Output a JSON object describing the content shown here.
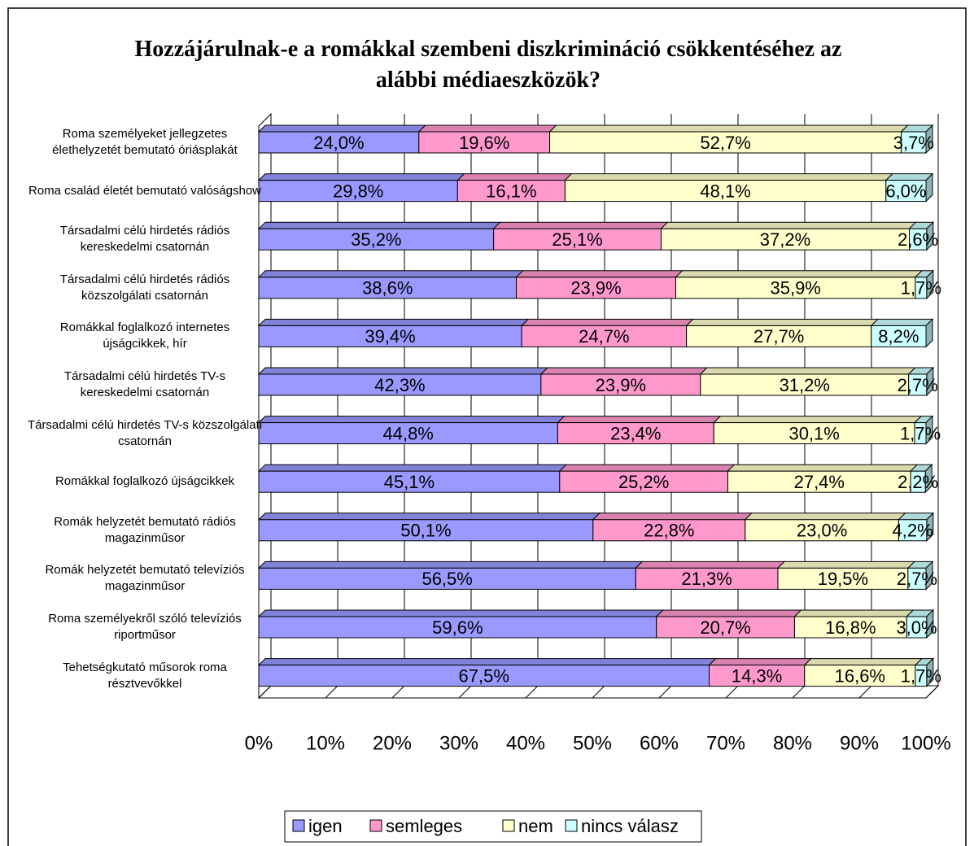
{
  "chart_data": {
    "type": "bar",
    "orientation": "horizontal",
    "stacked": true,
    "title": "Hozzájárulnak-e a romákkal szembeni diszkrimináció csökkentéséhez az alábbi médiaeszközök?",
    "categories": [
      "Roma személyeket jellegzetes élethelyzetét bemutató óriásplakát",
      "Roma család életét bemutató valóságshow",
      "Társadalmi célú hirdetés rádiós kereskedelmi csatornán",
      "Társadalmi célú hirdetés rádiós közszolgálati csatornán",
      "Romákkal foglalkozó internetes újságcikkek, hír",
      "Társadalmi célú hirdetés TV-s kereskedelmi csatornán",
      "Társadalmi célú hirdetés TV-s közszolgálati csatornán",
      "Romákkal foglalkozó újságcikkek",
      "Romák helyzetét bemutató rádiós magazinműsor",
      "Romák helyzetét bemutató televíziós magazinműsor",
      "Roma személyekről szóló televíziós riportműsor",
      "Tehetségkutató műsorok roma résztvevőkkel"
    ],
    "series": [
      {
        "name": "igen",
        "color": "#9999ff",
        "values": [
          24.0,
          29.8,
          35.2,
          38.6,
          39.4,
          42.3,
          44.8,
          45.1,
          50.1,
          56.5,
          59.6,
          67.5
        ],
        "value_labels": [
          "24,0%",
          "29,8%",
          "35,2%",
          "38,6%",
          "39,4%",
          "42,3%",
          "44,8%",
          "45,1%",
          "50,1%",
          "56,5%",
          "59,6%",
          "67,5%"
        ]
      },
      {
        "name": "semleges",
        "color": "#ff99cc",
        "values": [
          19.6,
          16.1,
          25.1,
          23.9,
          24.7,
          23.9,
          23.4,
          25.2,
          22.8,
          21.3,
          20.7,
          14.3
        ],
        "value_labels": [
          "19,6%",
          "16,1%",
          "25,1%",
          "23,9%",
          "24,7%",
          "23,9%",
          "23,4%",
          "25,2%",
          "22,8%",
          "21,3%",
          "20,7%",
          "14,3%"
        ]
      },
      {
        "name": "nem",
        "color": "#ffffcc",
        "values": [
          52.7,
          48.1,
          37.2,
          35.9,
          27.7,
          31.2,
          30.1,
          27.4,
          23.0,
          19.5,
          16.8,
          16.6
        ],
        "value_labels": [
          "52,7%",
          "48,1%",
          "37,2%",
          "35,9%",
          "27,7%",
          "31,2%",
          "30,1%",
          "27,4%",
          "23,0%",
          "19,5%",
          "16,8%",
          "16,6%"
        ]
      },
      {
        "name": "nincs válasz",
        "color": "#ccffff",
        "values": [
          3.7,
          6.0,
          2.6,
          1.7,
          8.2,
          2.7,
          1.7,
          2.2,
          4.2,
          2.7,
          3.0,
          1.7
        ],
        "value_labels": [
          "3,7%",
          "6,0%",
          "2,6%",
          "1,7%",
          "8,2%",
          "2,7%",
          "1,7%",
          "2,2%",
          "4,2%",
          "2,7%",
          "3,0%",
          "1,7%"
        ]
      }
    ],
    "xlim": [
      0,
      100
    ],
    "xticks": [
      {
        "value": 0,
        "label": "0%"
      },
      {
        "value": 10,
        "label": "10%"
      },
      {
        "value": 20,
        "label": "20%"
      },
      {
        "value": 30,
        "label": "30%"
      },
      {
        "value": 40,
        "label": "40%"
      },
      {
        "value": 50,
        "label": "50%"
      },
      {
        "value": 60,
        "label": "60%"
      },
      {
        "value": 70,
        "label": "70%"
      },
      {
        "value": 80,
        "label": "80%"
      },
      {
        "value": 90,
        "label": "90%"
      },
      {
        "value": 100,
        "label": "100%"
      }
    ],
    "grid": true,
    "legend": "bottom"
  }
}
